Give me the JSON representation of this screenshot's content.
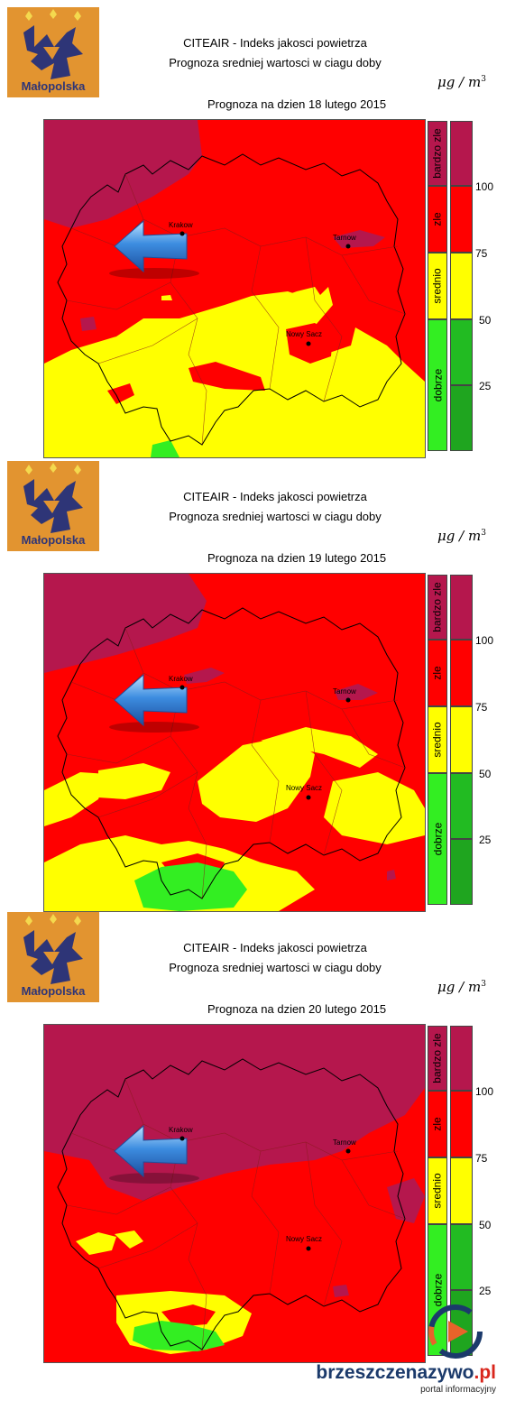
{
  "logo": {
    "text": "Małopolska",
    "bg_color": "#e29430",
    "emblem_color": "#2e3577",
    "crown_color": "#f4d94e"
  },
  "title_line1": "CITEAIR - Indeks jakosci powietrza",
  "title_line2": "Prognoza sredniej wartosci w ciagu doby",
  "units": {
    "mu": "μg",
    "sep": "/",
    "m": "m",
    "exp": "3"
  },
  "panels": [
    {
      "date": "Prognoza na dzien  18 lutego 2015"
    },
    {
      "date": "Prognoza na dzien  19 lutego 2015"
    },
    {
      "date": "Prognoza na dzien  20 lutego 2015"
    }
  ],
  "cities": {
    "krakow": "Krakow",
    "tarnow": "Tarnow",
    "nowy_sacz": "Nowy Sacz"
  },
  "scale": {
    "labels": [
      "bardzo zle",
      "zle",
      "srednio",
      "dobrze"
    ],
    "ticks": [
      "100",
      "75",
      "50",
      "25"
    ],
    "colors": {
      "bardzo_zle": "#b5174d",
      "zle": "#ff0000",
      "srednio": "#ffff00",
      "dobrze": "#33ee22",
      "dobrze_dark": "#1fa51f"
    }
  },
  "watermark": {
    "main": "brzeszczenazywo",
    "suffix": ".pl",
    "sub": "portal informacyjny"
  }
}
